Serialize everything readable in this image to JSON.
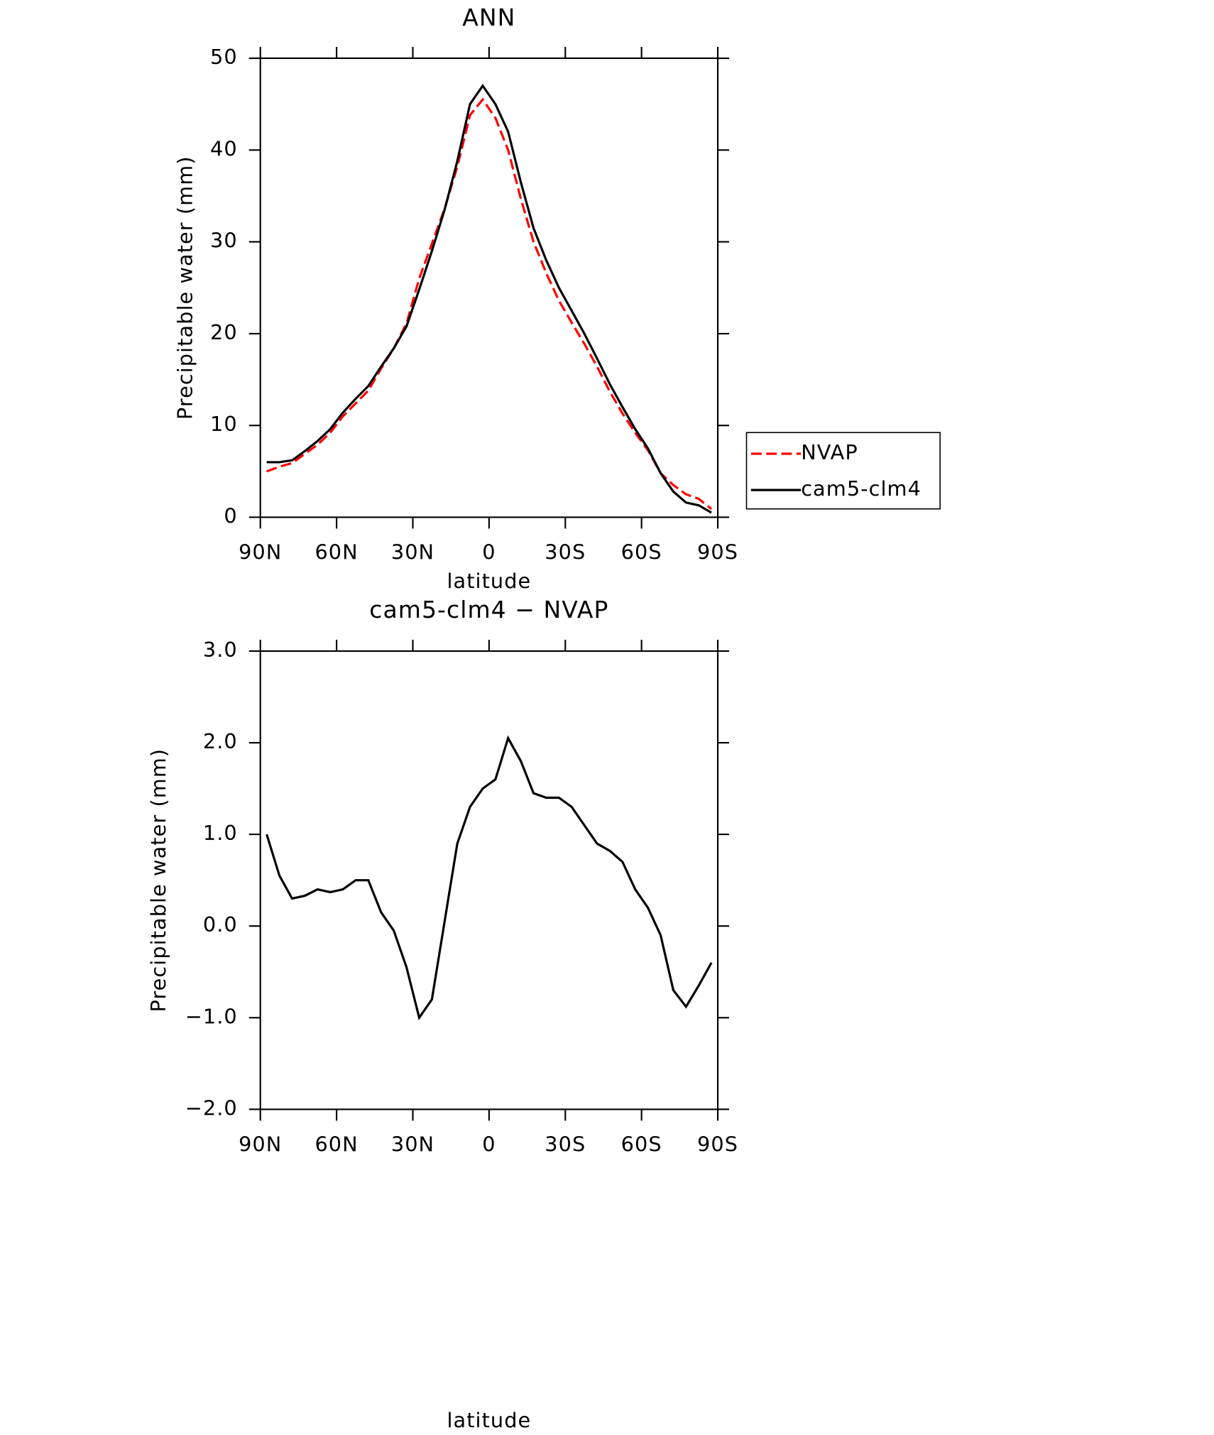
{
  "chart_data": [
    {
      "type": "line",
      "title": "ANN",
      "xlabel": "latitude",
      "ylabel": "Precipitable water (mm)",
      "x": [
        87.5,
        82.5,
        77.5,
        72.5,
        67.5,
        62.5,
        57.5,
        52.5,
        47.5,
        42.5,
        37.5,
        32.5,
        27.5,
        22.5,
        17.5,
        12.5,
        7.5,
        2.5,
        -2.5,
        -7.5,
        -12.5,
        -17.5,
        -22.5,
        -27.5,
        -32.5,
        -37.5,
        -42.5,
        -47.5,
        -52.5,
        -57.5,
        -62.5,
        -67.5,
        -72.5,
        -77.5,
        -82.5,
        -87.5
      ],
      "series": [
        {
          "name": "NVAP",
          "color": "#ff0000",
          "style": "dashed",
          "values": [
            5.0,
            5.5,
            5.9,
            6.9,
            7.9,
            9.2,
            11.0,
            12.4,
            13.8,
            16.2,
            18.4,
            21.1,
            26.0,
            29.8,
            33.6,
            38.2,
            43.8,
            45.5,
            43.5,
            40.0,
            34.7,
            30.0,
            26.6,
            23.6,
            21.2,
            18.9,
            16.4,
            13.7,
            11.3,
            9.2,
            7.3,
            4.8,
            3.5,
            2.5,
            2.0,
            0.9
          ]
        },
        {
          "name": "cam5-clm4",
          "color": "#000000",
          "style": "solid",
          "values": [
            6.0,
            6.0,
            6.2,
            7.2,
            8.3,
            9.6,
            11.4,
            12.9,
            14.3,
            16.4,
            18.4,
            20.8,
            24.8,
            29.0,
            33.5,
            38.8,
            45.0,
            47.0,
            45.0,
            42.0,
            36.5,
            31.5,
            28.0,
            25.0,
            22.5,
            20.0,
            17.3,
            14.5,
            12.0,
            9.6,
            7.5,
            4.8,
            2.8,
            1.6,
            1.3,
            0.5
          ]
        }
      ],
      "xlim": [
        90,
        -90
      ],
      "xticks": [
        {
          "value": 90,
          "label": "90N"
        },
        {
          "value": 60,
          "label": "60N"
        },
        {
          "value": 30,
          "label": "30N"
        },
        0,
        {
          "value": -30,
          "label": "30S"
        },
        {
          "value": -60,
          "label": "60S"
        },
        {
          "value": -90,
          "label": "90S"
        }
      ],
      "ylim": [
        0,
        50
      ],
      "yticks": [
        0,
        10,
        20,
        30,
        40,
        50
      ],
      "legend": "right"
    },
    {
      "type": "line",
      "title": "cam5-clm4 − NVAP",
      "xlabel": "latitude",
      "ylabel": "Precipitable water (mm)",
      "x": [
        87.5,
        82.5,
        77.5,
        72.5,
        67.5,
        62.5,
        57.5,
        52.5,
        47.5,
        42.5,
        37.5,
        32.5,
        27.5,
        22.5,
        17.5,
        12.5,
        7.5,
        2.5,
        -2.5,
        -7.5,
        -12.5,
        -17.5,
        -22.5,
        -27.5,
        -32.5,
        -37.5,
        -42.5,
        -47.5,
        -52.5,
        -57.5,
        -62.5,
        -67.5,
        -72.5,
        -77.5,
        -82.5,
        -87.5
      ],
      "series": [
        {
          "name": "cam5-clm4 − NVAP",
          "color": "#000000",
          "style": "solid",
          "values": [
            1.0,
            0.55,
            0.3,
            0.33,
            0.4,
            0.37,
            0.4,
            0.5,
            0.5,
            0.15,
            -0.05,
            -0.45,
            -1.0,
            -0.8,
            0.05,
            0.9,
            1.3,
            1.5,
            1.6,
            2.05,
            1.8,
            1.45,
            1.4,
            1.4,
            1.3,
            1.1,
            0.9,
            0.82,
            0.7,
            0.4,
            0.2,
            -0.1,
            -0.7,
            -0.88,
            -0.65,
            -0.4
          ]
        }
      ],
      "xlim": [
        90,
        -90
      ],
      "xticks": [
        {
          "value": 90,
          "label": "90N"
        },
        {
          "value": 60,
          "label": "60N"
        },
        {
          "value": 30,
          "label": "30N"
        },
        0,
        {
          "value": -30,
          "label": "30S"
        },
        {
          "value": -60,
          "label": "60S"
        },
        {
          "value": -90,
          "label": "90S"
        }
      ],
      "ylim": [
        -2,
        3
      ],
      "yticks": [
        {
          "value": -2,
          "label": "−2.0"
        },
        {
          "value": -1,
          "label": "−1.0"
        },
        {
          "value": 0,
          "label": "0.0"
        },
        {
          "value": 1,
          "label": "1.0"
        },
        {
          "value": 2,
          "label": "2.0"
        },
        {
          "value": 3,
          "label": "3.0"
        }
      ]
    }
  ]
}
